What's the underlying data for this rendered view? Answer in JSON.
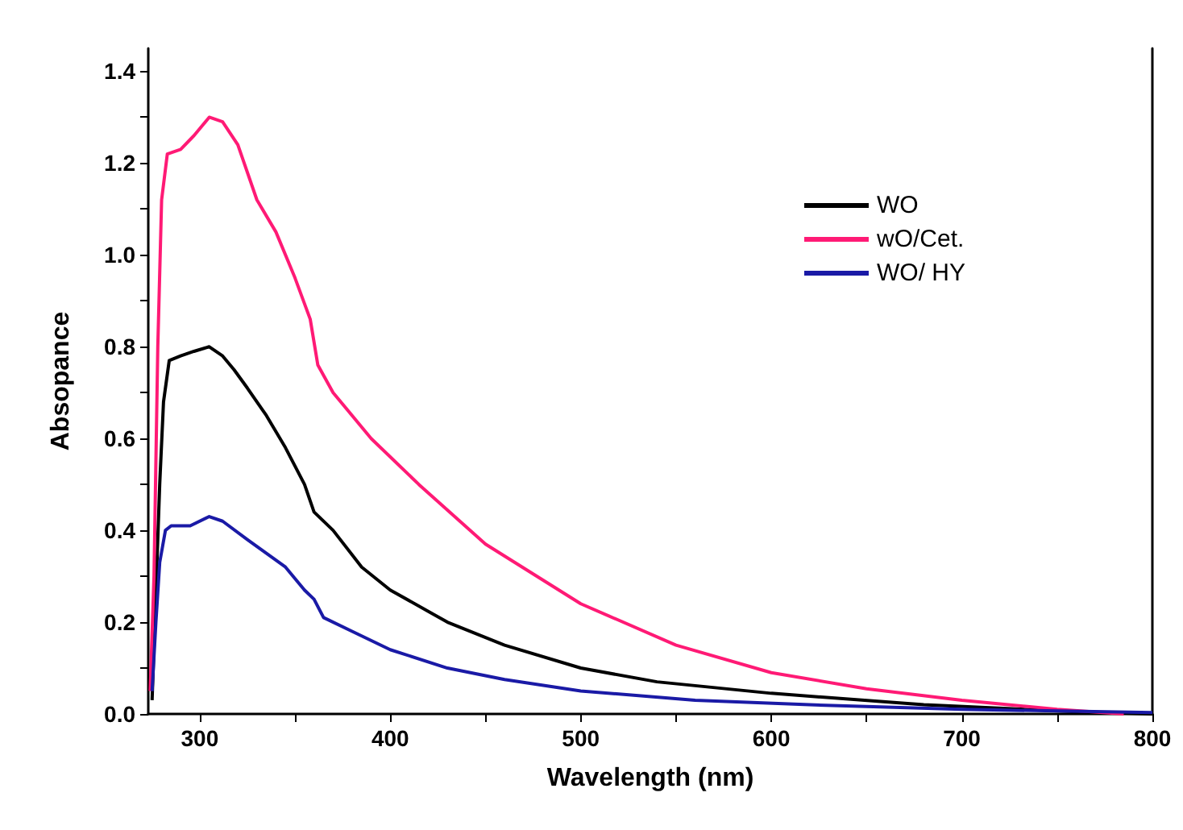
{
  "chart_data": {
    "type": "line",
    "xlabel": "Wavelength (nm)",
    "ylabel": "Absopance",
    "xlim": [
      273,
      800
    ],
    "xticks": [
      300,
      {
        "value": 350,
        "label": null
      },
      400,
      {
        "value": 450,
        "label": null
      },
      500,
      {
        "value": 550,
        "label": null
      },
      600,
      {
        "value": 650,
        "label": null
      },
      700,
      {
        "value": 750,
        "label": null
      },
      800
    ],
    "ylim": [
      0,
      1.45
    ],
    "yticks": [
      "0.0",
      {
        "value": 0.1,
        "label": null
      },
      0.2,
      {
        "value": 0.3,
        "label": null
      },
      0.4,
      {
        "value": 0.5,
        "label": null
      },
      0.6,
      {
        "value": 0.7,
        "label": null
      },
      0.8,
      {
        "value": 0.9,
        "label": null
      },
      "1.0",
      {
        "value": 1.1,
        "label": null
      },
      1.2,
      {
        "value": 1.3,
        "label": null
      },
      1.4
    ],
    "grid": false,
    "legend": "top right",
    "marker": "none",
    "line_style": "solid",
    "series": [
      {
        "name": "WO",
        "color": "#000000",
        "x": [
          275,
          279,
          281,
          284,
          290,
          297,
          305,
          312,
          318,
          325,
          335,
          345,
          355,
          360,
          370,
          385,
          400,
          430,
          460,
          500,
          540,
          600,
          680,
          760,
          800
        ],
        "values": [
          0.03,
          0.5,
          0.68,
          0.77,
          0.78,
          0.79,
          0.8,
          0.78,
          0.75,
          0.71,
          0.65,
          0.58,
          0.5,
          0.44,
          0.4,
          0.32,
          0.27,
          0.2,
          0.15,
          0.1,
          0.07,
          0.045,
          0.02,
          0.005,
          0
        ]
      },
      {
        "name": "wO/Cet.",
        "color": "#ff1a75",
        "x": [
          274,
          276,
          278,
          280,
          283,
          290,
          297,
          305,
          312,
          320,
          330,
          340,
          350,
          358,
          362,
          370,
          390,
          415,
          450,
          500,
          550,
          600,
          650,
          700,
          750,
          785
        ],
        "values": [
          0.05,
          0.3,
          0.8,
          1.12,
          1.22,
          1.23,
          1.26,
          1.3,
          1.29,
          1.24,
          1.12,
          1.05,
          0.95,
          0.86,
          0.76,
          0.7,
          0.6,
          0.5,
          0.37,
          0.24,
          0.15,
          0.09,
          0.055,
          0.03,
          0.01,
          0
        ]
      },
      {
        "name": "WO/ HY",
        "color": "#1a1aa6",
        "x": [
          275,
          277,
          279,
          282,
          285,
          295,
          305,
          312,
          325,
          335,
          345,
          355,
          360,
          365,
          380,
          400,
          430,
          460,
          500,
          560,
          620,
          700,
          800
        ],
        "values": [
          0.05,
          0.2,
          0.33,
          0.4,
          0.41,
          0.41,
          0.43,
          0.42,
          0.38,
          0.35,
          0.32,
          0.27,
          0.25,
          0.21,
          0.18,
          0.14,
          0.1,
          0.075,
          0.05,
          0.03,
          0.02,
          0.01,
          0.003
        ]
      }
    ]
  }
}
